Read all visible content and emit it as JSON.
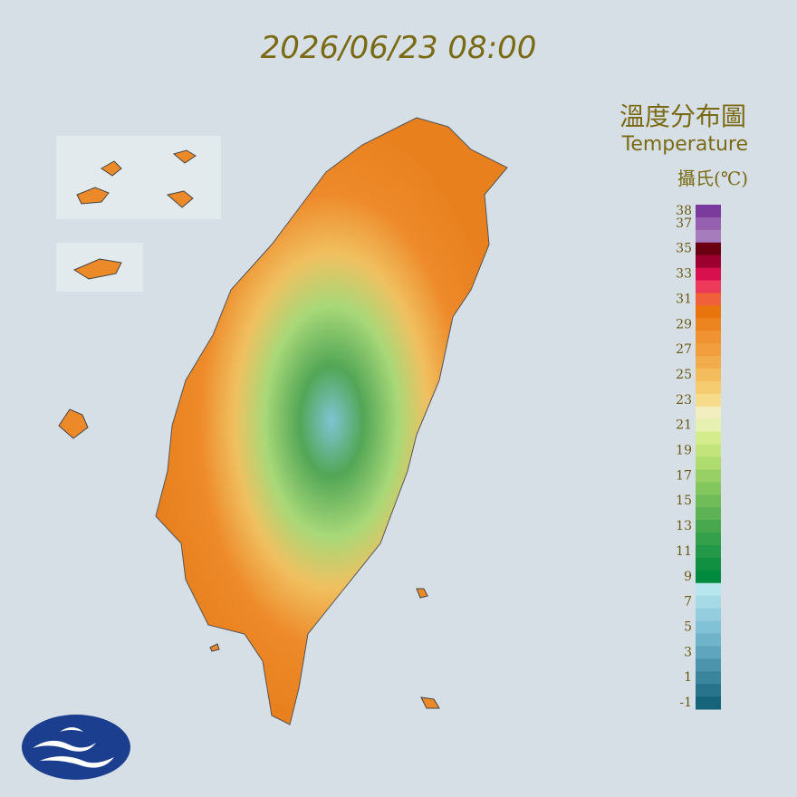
{
  "header": {
    "datetime": "2026/06/23 08:00"
  },
  "legend": {
    "title_zh": "溫度分布圖",
    "title_en": "Temperature",
    "unit": "攝氏(℃)",
    "ticks": [
      38,
      37,
      35,
      33,
      31,
      29,
      27,
      25,
      23,
      21,
      19,
      17,
      15,
      13,
      11,
      9,
      7,
      5,
      3,
      1,
      -1
    ],
    "colors": [
      "#7a3a9c",
      "#9560b0",
      "#a77cbc",
      "#6a0012",
      "#9c0030",
      "#d8104e",
      "#ee3a5a",
      "#f0603a",
      "#e8740e",
      "#ec8420",
      "#f09232",
      "#f29e3e",
      "#f3ac4c",
      "#f4bc5c",
      "#f5cc70",
      "#f6dc8a",
      "#f2eec0",
      "#e6f0b0",
      "#d4ec8c",
      "#c2e47a",
      "#aedc6e",
      "#98d066",
      "#84c65e",
      "#70bc58",
      "#5cb254",
      "#48a84e",
      "#34a04c",
      "#229848",
      "#129042",
      "#008a3e",
      "#b8e6ee",
      "#a6dae6",
      "#94cede",
      "#82c2d6",
      "#70b4ca",
      "#5ea4bc",
      "#4c94ac",
      "#3a849c",
      "#28748c",
      "#16647a"
    ]
  }
}
